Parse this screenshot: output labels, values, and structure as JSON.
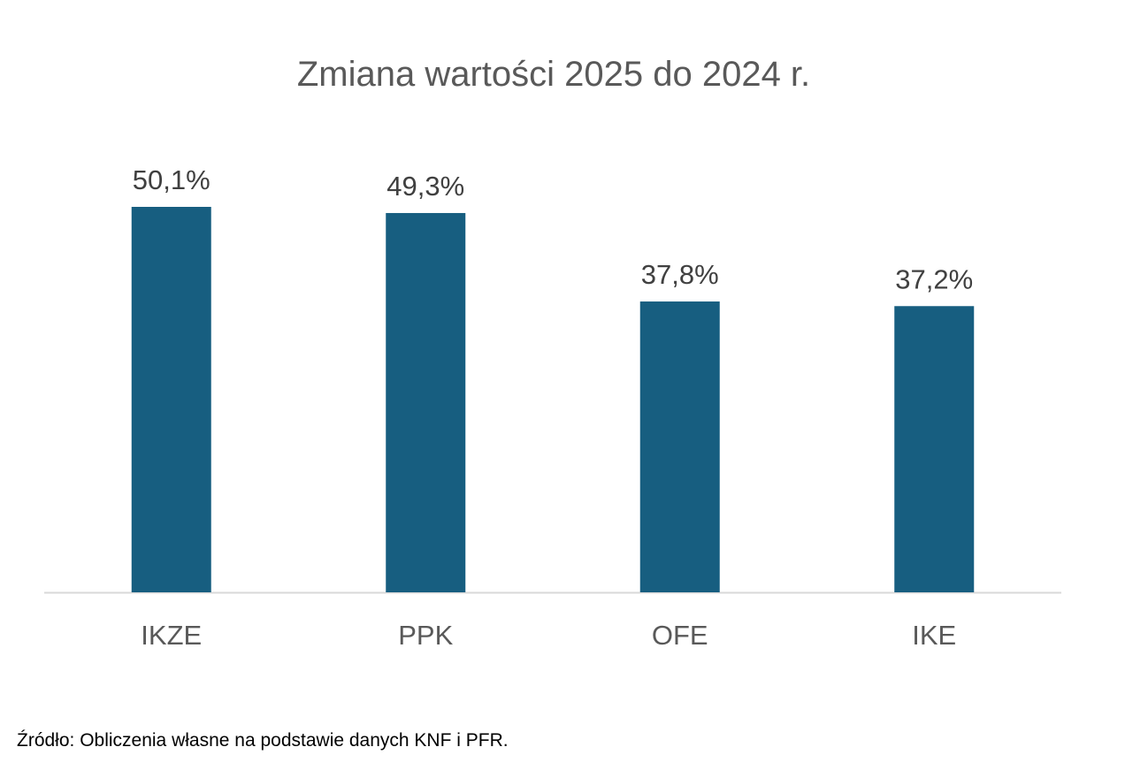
{
  "chart_data": {
    "type": "bar",
    "title": "Zmiana wartości 2025 do 2024 r.",
    "categories": [
      "IKZE",
      "PPK",
      "OFE",
      "IKE"
    ],
    "values": [
      50.1,
      49.3,
      37.8,
      37.2
    ],
    "value_labels": [
      "50,1%",
      "49,3%",
      "37,8%",
      "37,2%"
    ],
    "unit": "%",
    "xlabel": "",
    "ylabel": "",
    "ylim": [
      0,
      50.1
    ],
    "grid": false,
    "legend": "none",
    "colors": {
      "bar": "#175E80",
      "axis": "#D9D9D9",
      "label": "#404040",
      "category": "#595959"
    }
  },
  "source": "Źródło: Obliczenia własne na podstawie danych KNF i PFR."
}
